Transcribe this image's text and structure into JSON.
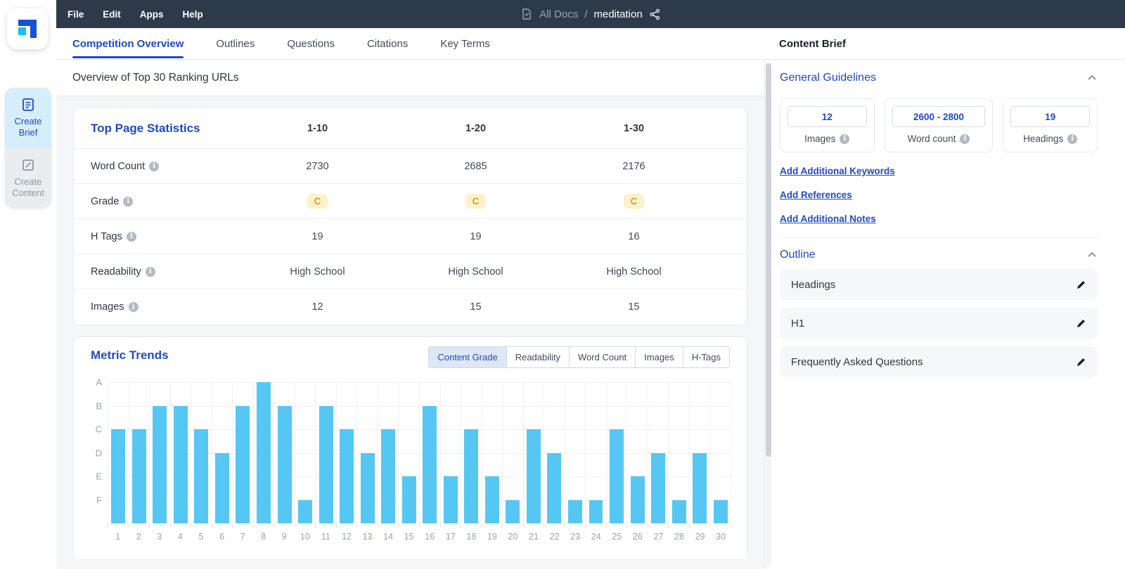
{
  "navbar": {
    "menu": [
      "File",
      "Edit",
      "Apps",
      "Help"
    ],
    "breadcrumb": {
      "all_docs": "All Docs",
      "separator": "/",
      "doc_name": "meditation"
    }
  },
  "sidebar": {
    "create_brief": "Create Brief",
    "create_content": "Create Content"
  },
  "tabs": [
    {
      "label": "Competition Overview",
      "active": true
    },
    {
      "label": "Outlines",
      "active": false
    },
    {
      "label": "Questions",
      "active": false
    },
    {
      "label": "Citations",
      "active": false
    },
    {
      "label": "Key Terms",
      "active": false
    }
  ],
  "content_brief_title": "Content Brief",
  "main": {
    "overview_title": "Overview of Top 30 Ranking URLs",
    "stats": {
      "title": "Top Page Statistics",
      "columns": [
        "1-10",
        "1-20",
        "1-30"
      ],
      "rows": [
        {
          "label": "Word Count",
          "type": "text",
          "values": [
            "2730",
            "2685",
            "2176"
          ]
        },
        {
          "label": "Grade",
          "type": "badge",
          "values": [
            "C",
            "C",
            "C"
          ]
        },
        {
          "label": "H Tags",
          "type": "text",
          "values": [
            "19",
            "19",
            "16"
          ]
        },
        {
          "label": "Readability",
          "type": "text",
          "values": [
            "High School",
            "High School",
            "High School"
          ]
        },
        {
          "label": "Images",
          "type": "text",
          "values": [
            "12",
            "15",
            "15"
          ]
        }
      ]
    },
    "trends": {
      "title": "Metric Trends",
      "buttons": [
        "Content Grade",
        "Readability",
        "Word Count",
        "Images",
        "H-Tags"
      ],
      "active_button": "Content Grade"
    }
  },
  "chart_data": {
    "type": "bar",
    "title": "Metric Trends",
    "active_metric": "Content Grade",
    "categories": [
      1,
      2,
      3,
      4,
      5,
      6,
      7,
      8,
      9,
      10,
      11,
      12,
      13,
      14,
      15,
      16,
      17,
      18,
      19,
      20,
      21,
      22,
      23,
      24,
      25,
      26,
      27,
      28,
      29,
      30
    ],
    "values_grades": [
      "C",
      "C",
      "B",
      "B",
      "C",
      "D",
      "B",
      "A",
      "B",
      "F",
      "B",
      "C",
      "D",
      "C",
      "E",
      "B",
      "E",
      "C",
      "E",
      "F",
      "C",
      "D",
      "F",
      "F",
      "C",
      "E",
      "D",
      "F",
      "D",
      "F"
    ],
    "grade_to_value": {
      "A": 6,
      "B": 5,
      "C": 4,
      "D": 3,
      "E": 2,
      "F": 1
    },
    "y_tick_labels": [
      "A",
      "B",
      "C",
      "D",
      "E",
      "F"
    ],
    "ylim": [
      0,
      6
    ],
    "grid": true,
    "legend": "none",
    "xlabel": "",
    "ylabel": "",
    "bar_color": "#55c7f2"
  },
  "brief_panel": {
    "general_guidelines": {
      "title": "General Guidelines",
      "cards": [
        {
          "value": "12",
          "label": "Images"
        },
        {
          "value": "2600 - 2800",
          "label": "Word count"
        },
        {
          "value": "19",
          "label": "Headings"
        }
      ],
      "links": [
        "Add Additional Keywords",
        "Add References",
        "Add Additional Notes"
      ]
    },
    "outline": {
      "title": "Outline",
      "items": [
        "Headings",
        "H1",
        "Frequently Asked Questions"
      ]
    }
  },
  "colors": {
    "accent_blue": "#1f49c7",
    "navbar_bg": "#2d3a49",
    "bar_blue": "#55c7f2",
    "grade_badge_bg": "#fbf2cc",
    "grade_badge_text": "#c9a42a",
    "sidebar_active_bg": "#d6eefb"
  }
}
